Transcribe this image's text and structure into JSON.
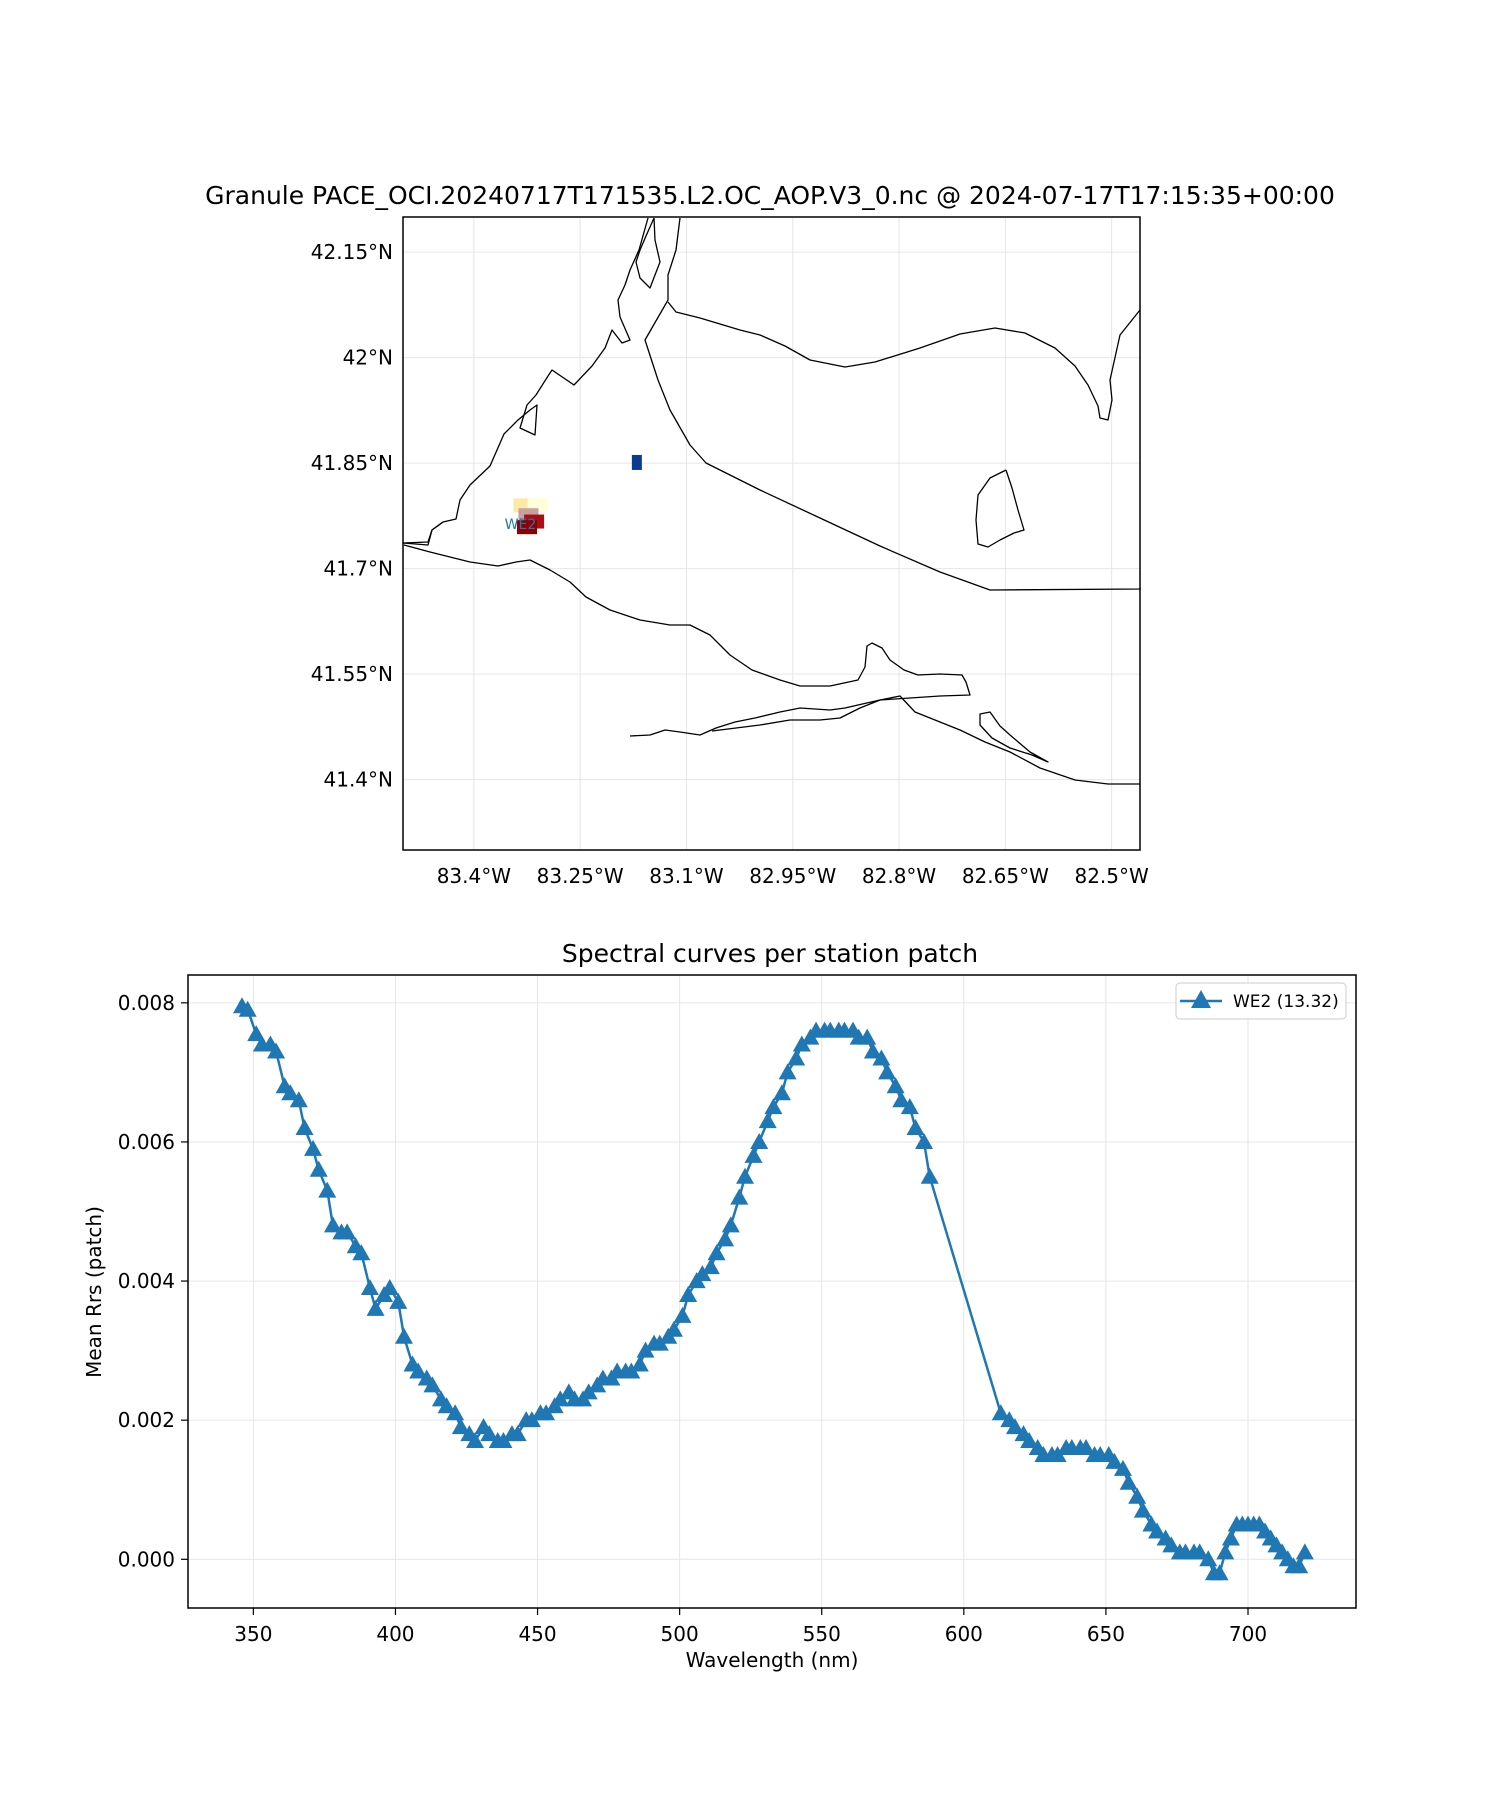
{
  "chart_data": [
    {
      "type": "map",
      "title": "Granule PACE_OCI.20240717T171535.L2.OC_AOP.V3_0.nc @ 2024-07-17T17:15:35+00:00",
      "xticks": [
        {
          "value": -83.4,
          "label": "83.4°W"
        },
        {
          "value": -83.25,
          "label": "83.25°W"
        },
        {
          "value": -83.1,
          "label": "83.1°W"
        },
        {
          "value": -82.95,
          "label": "82.95°W"
        },
        {
          "value": -82.8,
          "label": "82.8°W"
        },
        {
          "value": -82.65,
          "label": "82.65°W"
        },
        {
          "value": -82.5,
          "label": "82.5°W"
        }
      ],
      "yticks": [
        {
          "value": 42.15,
          "label": "42.15°N"
        },
        {
          "value": 42.0,
          "label": "42°N"
        },
        {
          "value": 41.85,
          "label": "41.85°N"
        },
        {
          "value": 41.7,
          "label": "41.7°N"
        },
        {
          "value": 41.55,
          "label": "41.55°N"
        },
        {
          "value": 41.4,
          "label": "41.4°N"
        }
      ],
      "xlim": [
        -83.5,
        -82.46
      ],
      "ylim": [
        41.3,
        42.2
      ],
      "grid": true,
      "station": {
        "label": "WE2",
        "lon": -83.33,
        "lat": 41.765,
        "color": "#1f77b4"
      },
      "pixels": [
        {
          "lon": -83.33,
          "lat": 41.79,
          "color": "#fde9a6"
        },
        {
          "lon": -83.31,
          "lat": 41.79,
          "color": "#fffed8"
        },
        {
          "lon": -83.323,
          "lat": 41.776,
          "color": "#c9a0a0"
        },
        {
          "lon": -83.315,
          "lat": 41.767,
          "color": "#a50f15"
        },
        {
          "lon": -83.325,
          "lat": 41.759,
          "color": "#8b0000"
        },
        {
          "lon": -83.17,
          "lat": 41.851,
          "color": "#0d3a91"
        }
      ]
    },
    {
      "type": "line",
      "title": "Spectral curves per station patch",
      "xlabel": "Wavelength (nm)",
      "ylabel": "Mean Rrs (patch)",
      "xlim": [
        327,
        738
      ],
      "ylim": [
        -0.0007,
        0.0084
      ],
      "xticks": [
        350,
        400,
        450,
        500,
        550,
        600,
        650,
        700
      ],
      "yticks": [
        {
          "value": 0.0,
          "label": "0.000"
        },
        {
          "value": 0.002,
          "label": "0.002"
        },
        {
          "value": 0.004,
          "label": "0.004"
        },
        {
          "value": 0.006,
          "label": "0.006"
        },
        {
          "value": 0.008,
          "label": "0.008"
        }
      ],
      "grid": true,
      "legend_position": "top-right",
      "series": [
        {
          "name": "WE2 (13.32)",
          "color": "#1f77b4",
          "marker": "triangle-up",
          "points": [
            [
              346,
              0.00795
            ],
            [
              348,
              0.0079
            ],
            [
              351,
              0.00755
            ],
            [
              353,
              0.0074
            ],
            [
              356,
              0.0074
            ],
            [
              358,
              0.0073
            ],
            [
              361,
              0.0068
            ],
            [
              363,
              0.0067
            ],
            [
              366,
              0.0066
            ],
            [
              368,
              0.0062
            ],
            [
              371,
              0.0059
            ],
            [
              373,
              0.0056
            ],
            [
              376,
              0.0053
            ],
            [
              378,
              0.0048
            ],
            [
              381,
              0.0047
            ],
            [
              383,
              0.0047
            ],
            [
              386,
              0.0045
            ],
            [
              388,
              0.0044
            ],
            [
              391,
              0.0039
            ],
            [
              393,
              0.0036
            ],
            [
              396,
              0.0038
            ],
            [
              398,
              0.0039
            ],
            [
              401,
              0.0037
            ],
            [
              403,
              0.0032
            ],
            [
              406,
              0.0028
            ],
            [
              408,
              0.0027
            ],
            [
              411,
              0.0026
            ],
            [
              413,
              0.0025
            ],
            [
              416,
              0.0023
            ],
            [
              418,
              0.0022
            ],
            [
              421,
              0.0021
            ],
            [
              423,
              0.0019
            ],
            [
              426,
              0.0018
            ],
            [
              428,
              0.0017
            ],
            [
              431,
              0.0019
            ],
            [
              433,
              0.0018
            ],
            [
              436,
              0.0017
            ],
            [
              438,
              0.0017
            ],
            [
              441,
              0.0018
            ],
            [
              443,
              0.0018
            ],
            [
              446,
              0.002
            ],
            [
              448,
              0.002
            ],
            [
              451,
              0.0021
            ],
            [
              453,
              0.0021
            ],
            [
              456,
              0.0022
            ],
            [
              458,
              0.0023
            ],
            [
              461,
              0.0024
            ],
            [
              463,
              0.0023
            ],
            [
              466,
              0.0023
            ],
            [
              468,
              0.0024
            ],
            [
              471,
              0.0025
            ],
            [
              473,
              0.0026
            ],
            [
              476,
              0.0026
            ],
            [
              478,
              0.0027
            ],
            [
              481,
              0.0027
            ],
            [
              483,
              0.0027
            ],
            [
              486,
              0.0028
            ],
            [
              488,
              0.003
            ],
            [
              491,
              0.0031
            ],
            [
              493,
              0.0031
            ],
            [
              496,
              0.0032
            ],
            [
              498,
              0.0033
            ],
            [
              501,
              0.0035
            ],
            [
              503,
              0.0038
            ],
            [
              506,
              0.004
            ],
            [
              508,
              0.0041
            ],
            [
              511,
              0.0042
            ],
            [
              513,
              0.0044
            ],
            [
              516,
              0.0046
            ],
            [
              518,
              0.0048
            ],
            [
              521,
              0.0052
            ],
            [
              523,
              0.0055
            ],
            [
              526,
              0.0058
            ],
            [
              528,
              0.006
            ],
            [
              531,
              0.0063
            ],
            [
              533,
              0.0065
            ],
            [
              536,
              0.0067
            ],
            [
              538,
              0.007
            ],
            [
              541,
              0.0072
            ],
            [
              543,
              0.0074
            ],
            [
              546,
              0.0075
            ],
            [
              548,
              0.0076
            ],
            [
              551,
              0.0076
            ],
            [
              553,
              0.0076
            ],
            [
              556,
              0.0076
            ],
            [
              558,
              0.0076
            ],
            [
              561,
              0.0076
            ],
            [
              563,
              0.0075
            ],
            [
              566,
              0.0075
            ],
            [
              568,
              0.0073
            ],
            [
              571,
              0.0072
            ],
            [
              573,
              0.007
            ],
            [
              576,
              0.0068
            ],
            [
              578,
              0.0066
            ],
            [
              581,
              0.0065
            ],
            [
              583,
              0.0062
            ],
            [
              586,
              0.006
            ],
            [
              588,
              0.0055
            ],
            [
              613,
              0.0021
            ],
            [
              616,
              0.002
            ],
            [
              618,
              0.0019
            ],
            [
              621,
              0.0018
            ],
            [
              623,
              0.0017
            ],
            [
              626,
              0.0016
            ],
            [
              628,
              0.0015
            ],
            [
              631,
              0.0015
            ],
            [
              633,
              0.0015
            ],
            [
              636,
              0.0016
            ],
            [
              638,
              0.0016
            ],
            [
              641,
              0.0016
            ],
            [
              643,
              0.0016
            ],
            [
              646,
              0.0015
            ],
            [
              648,
              0.0015
            ],
            [
              651,
              0.0015
            ],
            [
              653,
              0.0014
            ],
            [
              656,
              0.0013
            ],
            [
              658,
              0.0011
            ],
            [
              661,
              0.0009
            ],
            [
              663,
              0.0007
            ],
            [
              666,
              0.0005
            ],
            [
              668,
              0.0004
            ],
            [
              671,
              0.0003
            ],
            [
              673,
              0.0002
            ],
            [
              676,
              0.0001
            ],
            [
              678,
              0.0001
            ],
            [
              681,
              0.0001
            ],
            [
              683,
              0.0001
            ],
            [
              686,
              0.0
            ],
            [
              688,
              -0.0002
            ],
            [
              690,
              -0.0002
            ],
            [
              692,
              0.0001
            ],
            [
              694,
              0.0003
            ],
            [
              696,
              0.0005
            ],
            [
              698,
              0.0005
            ],
            [
              700,
              0.0005
            ],
            [
              702,
              0.0005
            ],
            [
              704,
              0.0005
            ],
            [
              706,
              0.0004
            ],
            [
              708,
              0.0003
            ],
            [
              710,
              0.0002
            ],
            [
              712,
              0.0001
            ],
            [
              714,
              0.0
            ],
            [
              716,
              -0.0001
            ],
            [
              718,
              -0.0001
            ],
            [
              720,
              0.0001
            ]
          ]
        }
      ]
    }
  ]
}
